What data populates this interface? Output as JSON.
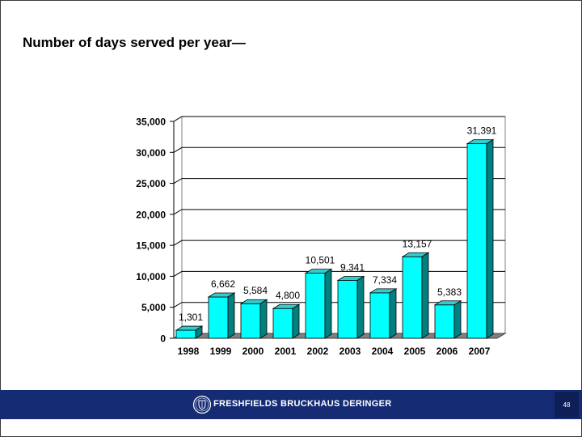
{
  "slide": {
    "title": "Number of days served per year—",
    "page_number": "48"
  },
  "footer": {
    "brand": "FRESHFIELDS BRUCKHAUS DERINGER",
    "logo_icon": "crest-seal-icon",
    "background_color": "#152c74"
  },
  "chart_data": {
    "type": "bar",
    "categories": [
      "1998",
      "1999",
      "2000",
      "2001",
      "2002",
      "2003",
      "2004",
      "2005",
      "2006",
      "2007"
    ],
    "values": [
      1301,
      6662,
      5584,
      4800,
      10501,
      9341,
      7334,
      13157,
      5383,
      31391
    ],
    "data_labels": [
      "1,301",
      "6,662",
      "5,584",
      "4,800",
      "10,501",
      "9,341",
      "7,334",
      "13,157",
      "5,383",
      "31,391"
    ],
    "yticks": [
      "0",
      "5,000",
      "10,000",
      "15,000",
      "20,000",
      "25,000",
      "30,000",
      "35,000"
    ],
    "ylim": [
      0,
      35000
    ],
    "grid": true,
    "style": "3d",
    "bar_color": "#00ffff",
    "title": "",
    "xlabel": "",
    "ylabel": ""
  }
}
